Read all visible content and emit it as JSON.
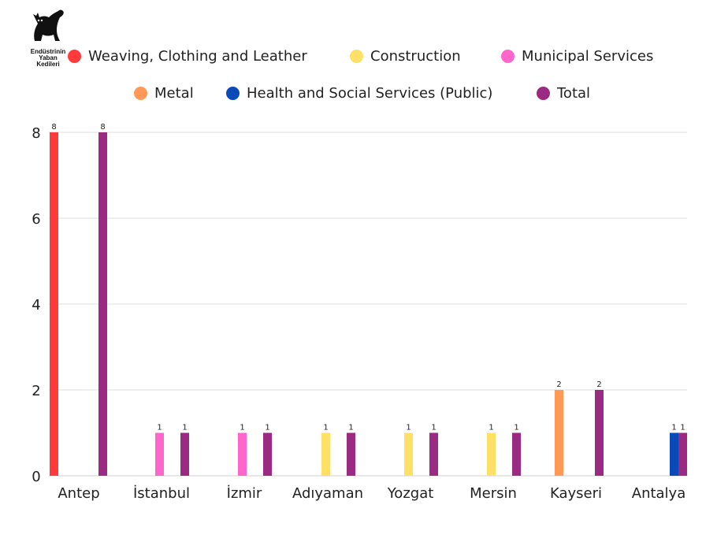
{
  "logo": {
    "text": "Endüstrinin\nYaban\nKedileri"
  },
  "chart_data": {
    "type": "bar",
    "categories": [
      "Antep",
      "İstanbul",
      "İzmir",
      "Adıyaman",
      "Yozgat",
      "Mersin",
      "Kayseri",
      "Antalya"
    ],
    "series": [
      {
        "name": "Weaving, Clothing and Leather",
        "color": "#ff3a3a",
        "values": [
          8,
          0,
          0,
          0,
          0,
          0,
          0,
          0
        ]
      },
      {
        "name": "Construction",
        "color": "#ffe066",
        "values": [
          0,
          0,
          0,
          1,
          1,
          1,
          0,
          0
        ]
      },
      {
        "name": "Municipal Services",
        "color": "#ff66cc",
        "values": [
          0,
          1,
          1,
          0,
          0,
          0,
          0,
          0
        ]
      },
      {
        "name": "Metal",
        "color": "#ff9955",
        "values": [
          0,
          0,
          0,
          0,
          0,
          0,
          2,
          0
        ]
      },
      {
        "name": "Health and Social Services (Public)",
        "color": "#0a4ab8",
        "values": [
          0,
          0,
          0,
          0,
          0,
          0,
          0,
          1
        ]
      },
      {
        "name": "Total",
        "color": "#9a2a82",
        "values": [
          8,
          1,
          1,
          1,
          1,
          1,
          2,
          1
        ]
      }
    ],
    "yticks": [
      0,
      2,
      4,
      6,
      8
    ],
    "ylim": [
      0,
      8
    ],
    "grid": true,
    "legend": "top",
    "data_labels": true
  }
}
